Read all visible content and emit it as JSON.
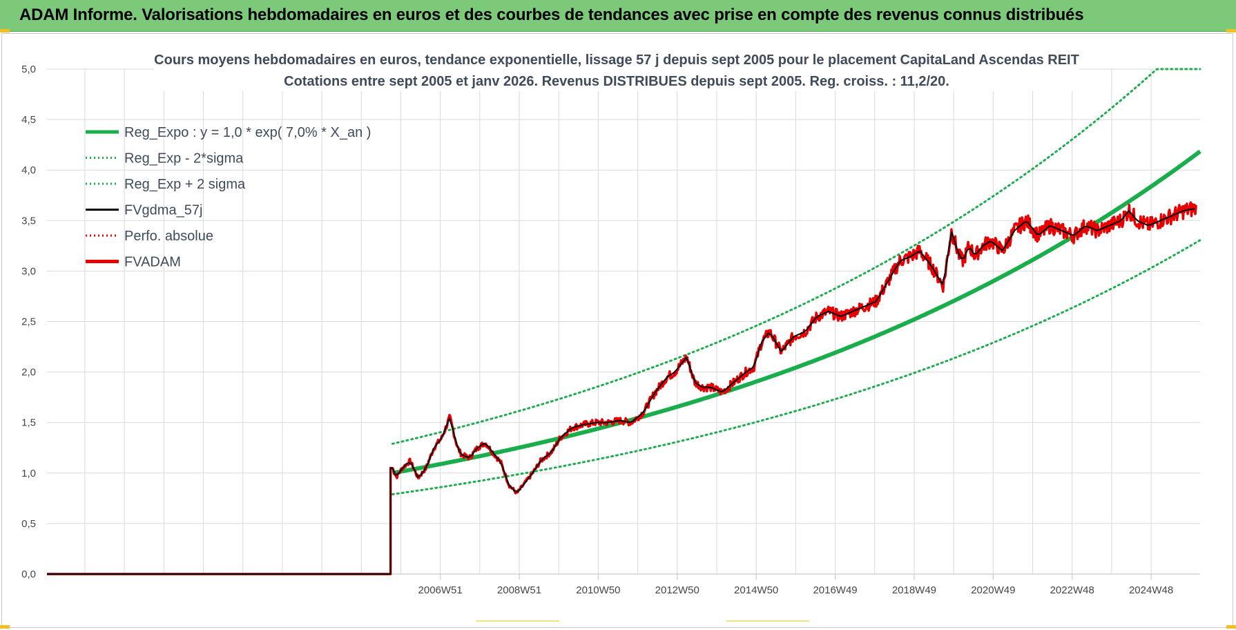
{
  "header": {
    "title": "ADAM Informe. Valorisations hebdomadaires en euros et des courbes de tendances avec prise en compte des revenus connus distribués"
  },
  "colors": {
    "banner": "#7dc97a",
    "reg_expo": "#1aad4b",
    "band": "#1aad4b",
    "fvgdma": "#000000",
    "perfo": "#e00000",
    "fvadam": "#e80000",
    "grid": "#d9d9d9"
  },
  "chart_data": {
    "type": "line",
    "title_line1": "Cours moyens hebdomadaires en euros, tendance exponentielle, lissage 57 j depuis sept 2005 pour le placement CapitaLand Ascendas REIT",
    "title_line2": "Cotations entre sept 2005 et janv 2026. Revenus DISTRIBUES depuis sept 2005. Reg. croiss. : 11,2/20.",
    "xlabel": "",
    "ylabel": "",
    "ylim": [
      0,
      5
    ],
    "yticks": [
      "0,0",
      "0,5",
      "1,0",
      "1,5",
      "2,0",
      "2,5",
      "3,0",
      "3,5",
      "4,0",
      "4,5",
      "5,0"
    ],
    "xticks": [
      "2006W51",
      "2008W51",
      "2010W50",
      "2012W50",
      "2014W50",
      "2016W49",
      "2018W49",
      "2020W49",
      "2022W48",
      "2024W48"
    ],
    "grid": true,
    "legend_position": "top-left",
    "legend": [
      {
        "name": "Reg_Expo : y = 1,0 * exp( 7,0% *  X_an )",
        "style": "solid-thick",
        "color": "#1aad4b"
      },
      {
        "name": "Reg_Exp - 2*sigma",
        "style": "dotted",
        "color": "#1aad4b"
      },
      {
        "name": "Reg_Exp + 2 sigma",
        "style": "dotted",
        "color": "#1aad4b"
      },
      {
        "name": "FVgdma_57j",
        "style": "solid",
        "color": "#000000"
      },
      {
        "name": "Perfo. absolue",
        "style": "dotted",
        "color": "#e00000"
      },
      {
        "name": "FVADAM",
        "style": "solid-thick",
        "color": "#e80000"
      }
    ],
    "x_range_years": [
      1997.0,
      2026.2
    ],
    "data_start_year": 2005.75,
    "reg_expo": {
      "a": 1.0,
      "rate": 0.07,
      "lower_factor": 0.79,
      "upper_factor": 1.29,
      "upper_cap": 5.0
    },
    "fvadam": {
      "x": [
        1997.0,
        2005.7,
        2005.75,
        2005.85,
        2006.0,
        2006.2,
        2006.4,
        2006.6,
        2006.8,
        2007.0,
        2007.2,
        2007.4,
        2007.5,
        2007.7,
        2007.9,
        2008.1,
        2008.3,
        2008.5,
        2008.7,
        2008.9,
        2009.1,
        2009.3,
        2009.5,
        2009.8,
        2010.0,
        2010.3,
        2010.6,
        2010.9,
        2011.2,
        2011.5,
        2011.8,
        2012.1,
        2012.4,
        2012.7,
        2012.9,
        2013.2,
        2013.4,
        2013.6,
        2013.8,
        2014.1,
        2014.4,
        2014.7,
        2014.9,
        2015.1,
        2015.3,
        2015.6,
        2015.9,
        2016.2,
        2016.5,
        2016.8,
        2017.1,
        2017.4,
        2017.7,
        2018.0,
        2018.3,
        2018.6,
        2018.9,
        2019.1,
        2019.4,
        2019.7,
        2019.9,
        2020.1,
        2020.2,
        2020.35,
        2020.5,
        2020.7,
        2020.9,
        2021.2,
        2021.5,
        2021.8,
        2022.1,
        2022.4,
        2022.7,
        2023.0,
        2023.3,
        2023.6,
        2023.9,
        2024.2,
        2024.4,
        2024.6,
        2024.9,
        2025.2,
        2025.5,
        2025.8,
        2026.1
      ],
      "values": [
        0.0,
        0.0,
        1.05,
        0.96,
        1.05,
        1.12,
        0.95,
        1.05,
        1.25,
        1.35,
        1.55,
        1.25,
        1.18,
        1.15,
        1.25,
        1.3,
        1.2,
        1.1,
        0.88,
        0.8,
        0.9,
        1.0,
        1.12,
        1.22,
        1.35,
        1.45,
        1.48,
        1.5,
        1.5,
        1.52,
        1.5,
        1.6,
        1.8,
        1.95,
        2.0,
        2.15,
        1.9,
        1.85,
        1.85,
        1.8,
        1.9,
        2.0,
        2.05,
        2.3,
        2.4,
        2.2,
        2.35,
        2.4,
        2.55,
        2.6,
        2.55,
        2.6,
        2.65,
        2.7,
        2.9,
        3.1,
        3.15,
        3.2,
        3.05,
        2.85,
        3.4,
        3.15,
        3.1,
        3.25,
        3.15,
        3.25,
        3.3,
        3.2,
        3.4,
        3.5,
        3.35,
        3.45,
        3.4,
        3.35,
        3.45,
        3.4,
        3.45,
        3.5,
        3.6,
        3.5,
        3.45,
        3.5,
        3.55,
        3.6,
        3.62
      ]
    }
  }
}
